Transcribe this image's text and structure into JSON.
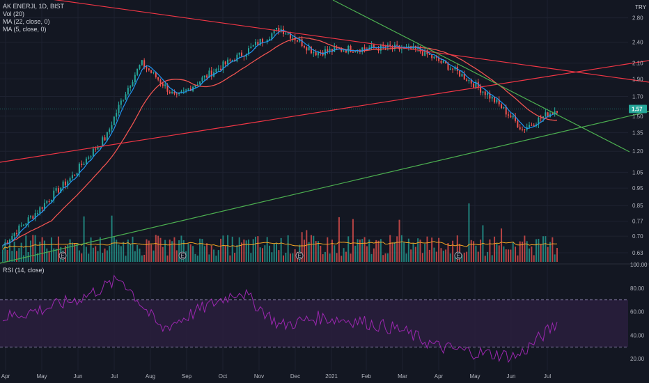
{
  "header": {
    "title": "AK ENERJI, 1D, BIST",
    "currency": "TRY",
    "indicators": [
      "Vol (20)",
      "MA (22, close, 0)",
      "MA (5, close, 0)"
    ],
    "rsi_label": "RSI (14, close)"
  },
  "colors": {
    "background": "#131722",
    "grid": "#1e2230",
    "up_candle": "#26a69a",
    "down_candle": "#ef5350",
    "ma22": "#ef5350",
    "ma5": "#2196f3",
    "vol_up": "#26a69a",
    "vol_down": "#ef5350",
    "vol_ma": "#f5a623",
    "trend_red": "#f23645",
    "trend_green": "#4caf50",
    "rsi_line": "#9c27b0",
    "rsi_band": "#2a1f3d",
    "text": "#b2b5be"
  },
  "chart_data": [
    {
      "type": "candlestick",
      "title": "AK ENERJI, 1D, BIST",
      "y_scale": "log",
      "ylim": [
        0.6,
        3.0
      ],
      "y_ticks": [
        "2.80",
        "2.40",
        "2.10",
        "1.90",
        "1.70",
        "1.50",
        "1.35",
        "1.20",
        "1.05",
        "0.95",
        "0.85",
        "0.77",
        "0.70",
        "0.63"
      ],
      "x_ticks": [
        "Apr",
        "May",
        "Jun",
        "Jul",
        "Aug",
        "Sep",
        "Oct",
        "Nov",
        "Dec",
        "2021",
        "Feb",
        "Mar",
        "Apr",
        "May",
        "Jun",
        "Jul"
      ],
      "last_price": "1.57",
      "close_by_month": [
        {
          "x": "Apr",
          "close": 0.66
        },
        {
          "x": "May",
          "close": 0.82
        },
        {
          "x": "Jun",
          "close": 1.02
        },
        {
          "x": "mid-Jun",
          "close": 1.32
        },
        {
          "x": "Jul",
          "close": 2.1
        },
        {
          "x": "Aug",
          "close": 1.68
        },
        {
          "x": "Sep",
          "close": 1.97
        },
        {
          "x": "Oct",
          "close": 2.25
        },
        {
          "x": "mid-Oct",
          "close": 2.62
        },
        {
          "x": "Nov",
          "close": 2.25
        },
        {
          "x": "Dec",
          "close": 2.3
        },
        {
          "x": "2021",
          "close": 2.32
        },
        {
          "x": "Feb",
          "close": 2.28
        },
        {
          "x": "Mar",
          "close": 2.02
        },
        {
          "x": "Apr",
          "close": 1.72
        },
        {
          "x": "late-Apr",
          "close": 1.38
        },
        {
          "x": "May",
          "close": 1.57
        }
      ],
      "trendlines": [
        {
          "color": "red",
          "from": {
            "x": "Mar 2020",
            "y": 3.2
          },
          "to": {
            "x": "Jul 2021",
            "y": 1.97
          }
        },
        {
          "color": "red",
          "from": {
            "x": "Mar 2020",
            "y": 1.15
          },
          "to": {
            "x": "Jul 2021",
            "y": 2.25
          }
        },
        {
          "color": "green",
          "from": {
            "x": "Mar 2020",
            "y": 0.6
          },
          "to": {
            "x": "Jul 2021",
            "y": 1.6
          }
        },
        {
          "color": "green",
          "from": {
            "x": "Oct 2020",
            "y": 3.2
          },
          "to": {
            "x": "Jul 2021",
            "y": 1.22
          }
        }
      ],
      "earnings_markers": [
        "May",
        "Aug",
        "Nov",
        "Mar"
      ],
      "earnings_label": "E"
    },
    {
      "type": "line",
      "title": "RSI (14, close)",
      "ylim": [
        10,
        100
      ],
      "y_ticks": [
        "100.00",
        "80.00",
        "60.00",
        "40.00",
        "20.00"
      ],
      "band": [
        30,
        70
      ],
      "values_by_month": [
        {
          "x": "Apr",
          "y": 55
        },
        {
          "x": "May",
          "y": 62
        },
        {
          "x": "Jun",
          "y": 72
        },
        {
          "x": "Jul",
          "y": 88
        },
        {
          "x": "Aug",
          "y": 45
        },
        {
          "x": "Sep",
          "y": 62
        },
        {
          "x": "Oct",
          "y": 78
        },
        {
          "x": "Nov",
          "y": 48
        },
        {
          "x": "Dec",
          "y": 55
        },
        {
          "x": "2021",
          "y": 52
        },
        {
          "x": "Feb",
          "y": 45
        },
        {
          "x": "Mar",
          "y": 30
        },
        {
          "x": "Apr",
          "y": 25
        },
        {
          "x": "late-Apr",
          "y": 22
        },
        {
          "x": "May",
          "y": 50
        }
      ]
    }
  ]
}
